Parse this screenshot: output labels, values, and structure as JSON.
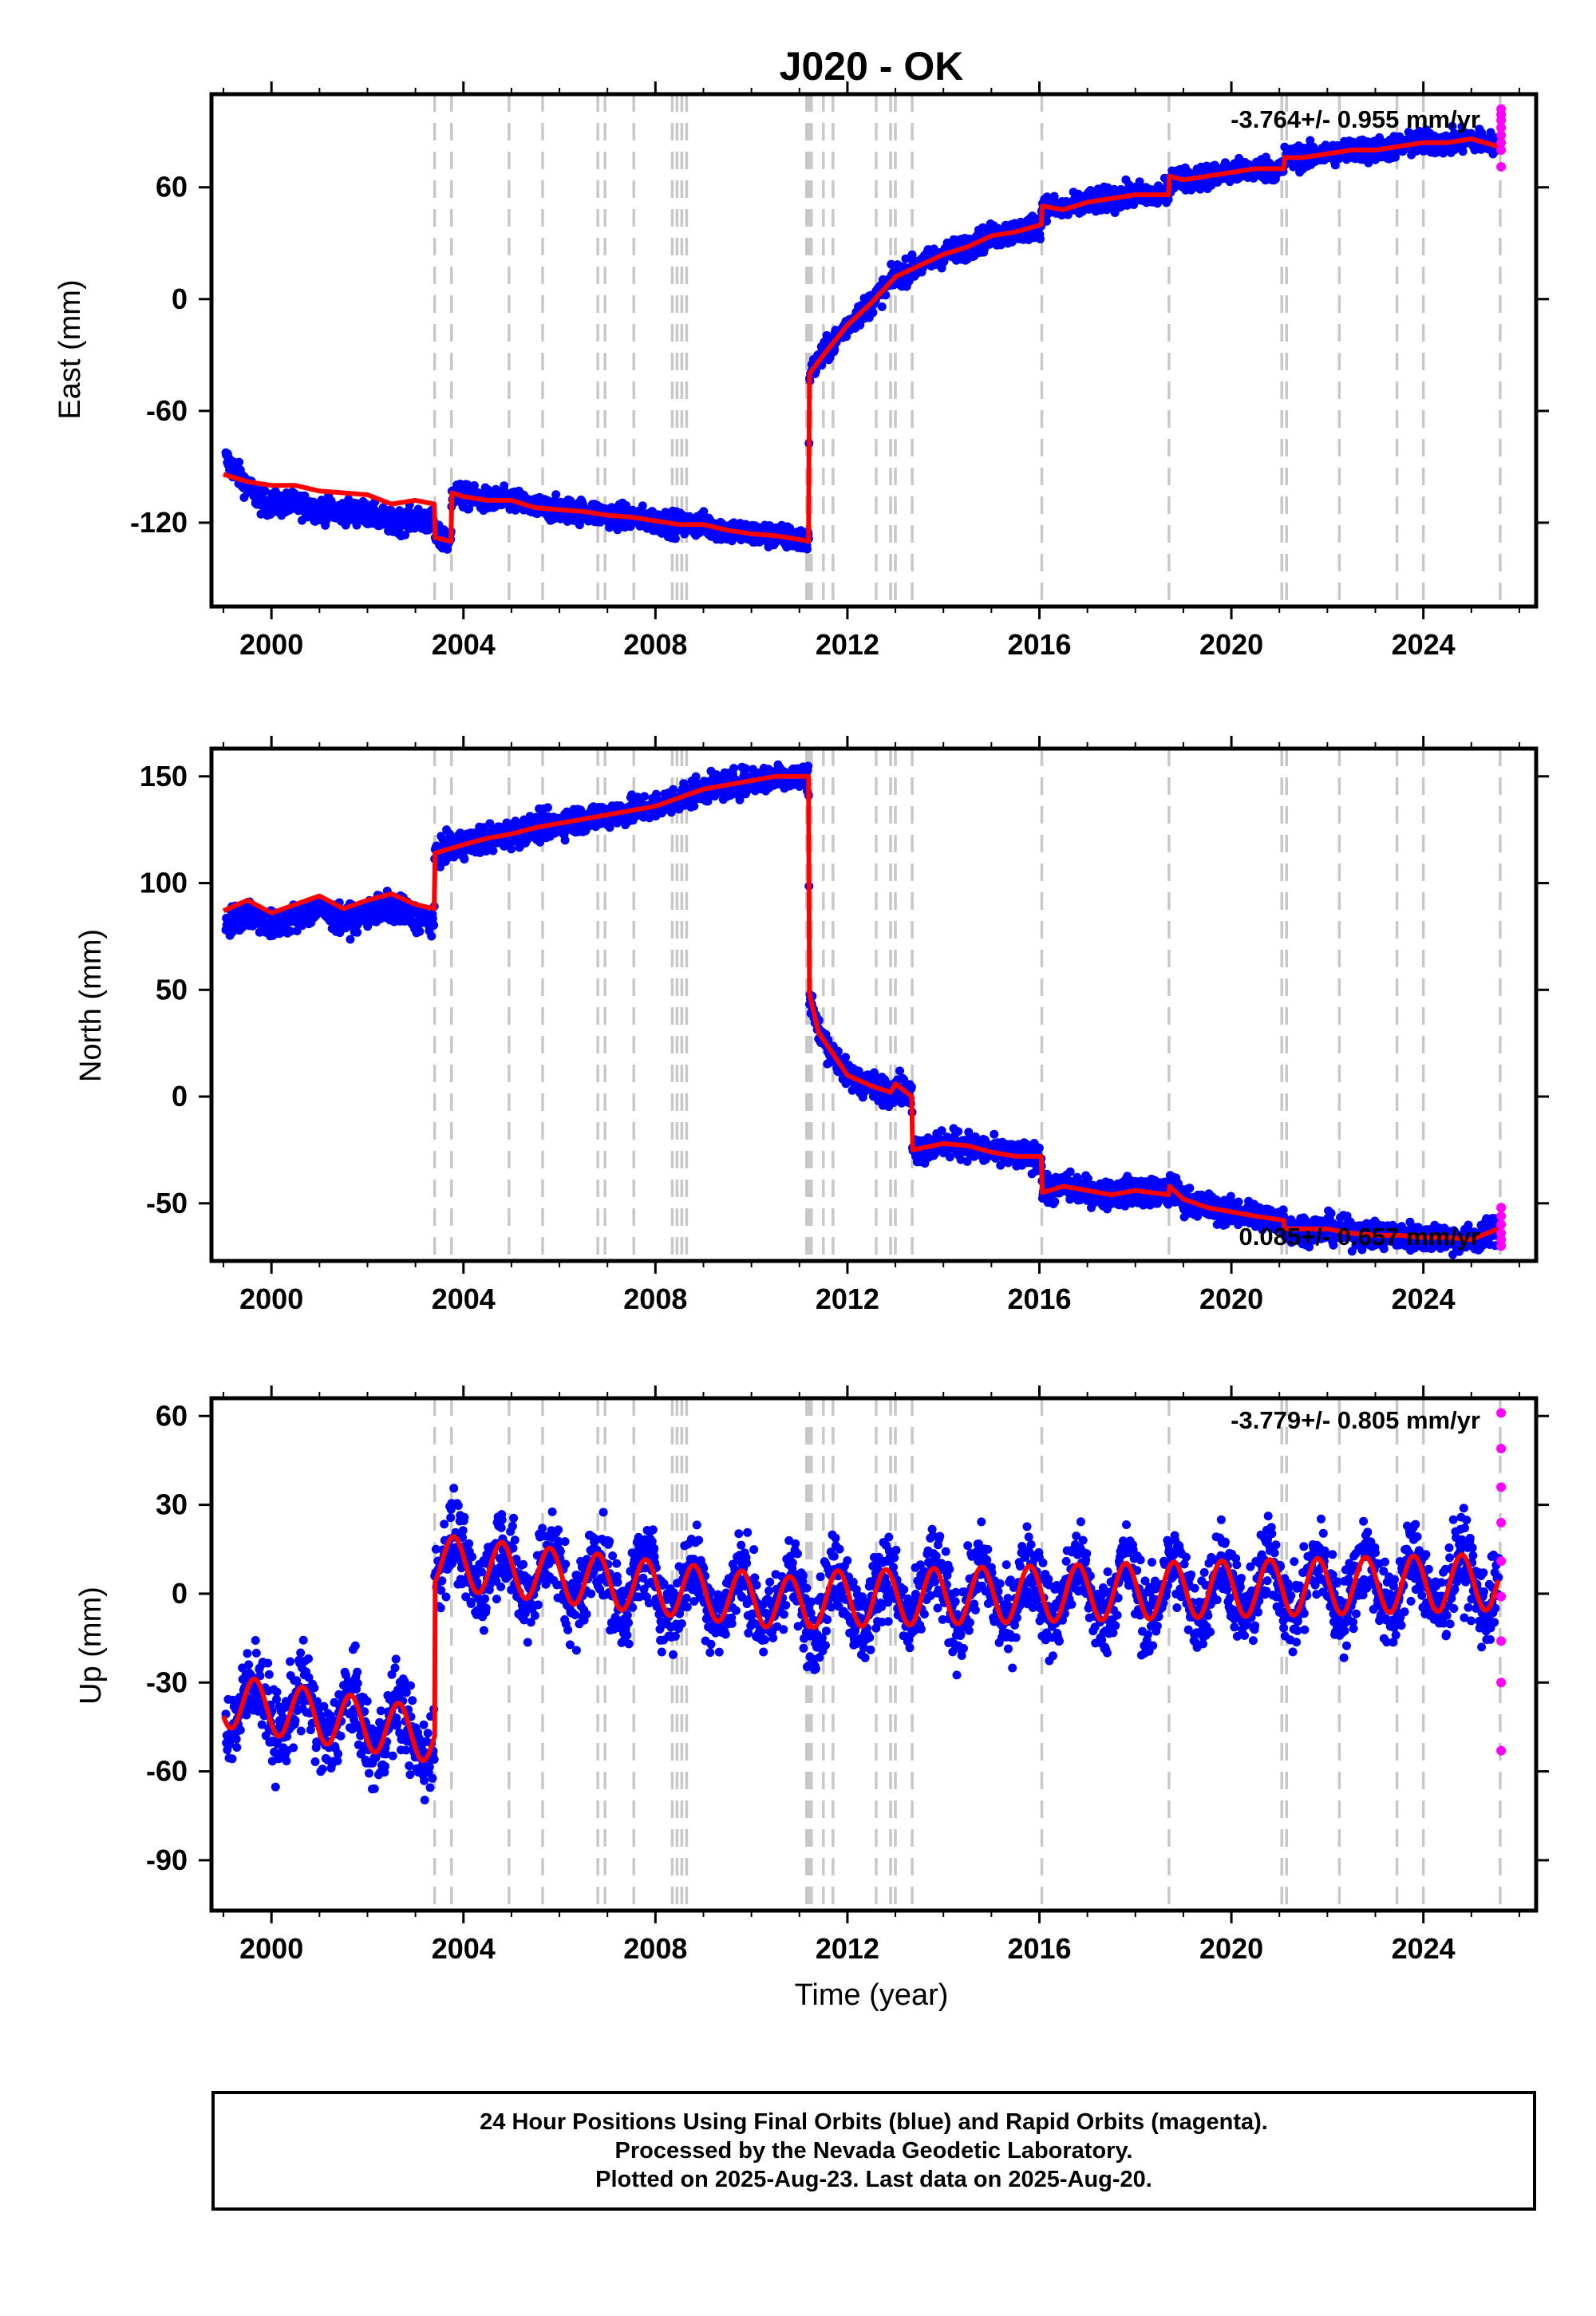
{
  "title": "J020 - OK",
  "xlabel": "Time (year)",
  "x_ticks": [
    "2000",
    "2004",
    "2008",
    "2012",
    "2016",
    "2020",
    "2024"
  ],
  "colors": {
    "final": "#0000ff",
    "rapid": "#ff00ff",
    "model": "#ff0000",
    "event_lines": "#c8c8c8"
  },
  "footer": {
    "line1": "24 Hour Positions Using Final Orbits (blue) and Rapid Orbits (magenta).",
    "line2": "Processed by the Nevada Geodetic Laboratory.",
    "line3": "Plotted on 2025-Aug-23. Last data on 2025-Aug-20."
  },
  "chart_data": [
    {
      "type": "scatter",
      "ylabel": "East (mm)",
      "rate_label": "-3.764+/- 0.955 mm/yr",
      "xlim": [
        1998.75,
        2026.35
      ],
      "ylim": [
        -165,
        110
      ],
      "y_ticks": [
        "60",
        "0",
        "-60",
        "-120"
      ],
      "y_tick_values": [
        60,
        0,
        -60,
        -120
      ],
      "event_lines": [
        2003.4,
        2003.75,
        2004.95,
        2005.65,
        2006.8,
        2006.95,
        2007.55,
        2008.35,
        2008.45,
        2008.55,
        2008.65,
        2011.15,
        2011.2,
        2011.25,
        2011.5,
        2011.7,
        2012.6,
        2012.9,
        2013.0,
        2013.35,
        2016.05,
        2018.7,
        2021.05,
        2021.15,
        2022.25,
        2023.45,
        2024.0,
        2025.6
      ],
      "trend_segments": [
        {
          "x": [
            1999.0,
            2003.4
          ],
          "y": [
            -80,
            -118
          ]
        },
        {
          "x": [
            2003.4,
            2003.75
          ],
          "y": [
            -128,
            -132
          ]
        },
        {
          "x": [
            2003.75,
            2011.2
          ],
          "y": [
            -102,
            -136
          ]
        },
        {
          "x": [
            2011.2,
            2012.5
          ],
          "y": [
            -38,
            0
          ]
        },
        {
          "x": [
            2012.5,
            2016.05
          ],
          "y": [
            8,
            40
          ]
        },
        {
          "x": [
            2016.05,
            2018.7
          ],
          "y": [
            46,
            55
          ]
        },
        {
          "x": [
            2018.7,
            2021.1
          ],
          "y": [
            63,
            68
          ]
        },
        {
          "x": [
            2021.1,
            2025.6
          ],
          "y": [
            72,
            86
          ]
        }
      ],
      "model": {
        "x": [
          1999.0,
          1999.5,
          2000.0,
          2000.5,
          2001.0,
          2001.5,
          2002.0,
          2002.5,
          2003.0,
          2003.39,
          2003.41,
          2003.74,
          2003.76,
          2004.0,
          2004.5,
          2005.0,
          2005.5,
          2006.0,
          2006.5,
          2007.0,
          2007.5,
          2008.0,
          2008.5,
          2009.0,
          2009.5,
          2010.0,
          2010.5,
          2011.0,
          2011.19,
          2011.21,
          2011.5,
          2012.0,
          2012.5,
          2013.0,
          2013.5,
          2014.0,
          2014.5,
          2015.0,
          2015.5,
          2016.04,
          2016.06,
          2016.5,
          2017.0,
          2017.5,
          2018.0,
          2018.69,
          2018.71,
          2019.0,
          2019.5,
          2020.0,
          2020.5,
          2021.09,
          2021.11,
          2021.5,
          2022.0,
          2022.5,
          2023.0,
          2023.5,
          2024.0,
          2024.5,
          2025.0,
          2025.55
        ],
        "y": [
          -94,
          -98,
          -100,
          -100,
          -103,
          -104,
          -105,
          -110,
          -108,
          -110,
          -128,
          -130,
          -104,
          -106,
          -108,
          -108,
          -112,
          -113,
          -114,
          -116,
          -117,
          -119,
          -121,
          -121,
          -124,
          -126,
          -127,
          -129,
          -130,
          -40,
          -30,
          -14,
          -2,
          12,
          18,
          24,
          28,
          34,
          36,
          40,
          50,
          48,
          52,
          54,
          56,
          56,
          66,
          64,
          66,
          68,
          70,
          70,
          76,
          76,
          78,
          80,
          80,
          82,
          84,
          84,
          86,
          82
        ]
      },
      "rapid_points": [
        [
          2025.62,
          102
        ],
        [
          2025.62,
          99
        ],
        [
          2025.62,
          96
        ],
        [
          2025.62,
          92
        ],
        [
          2025.62,
          88
        ],
        [
          2025.62,
          84
        ],
        [
          2025.62,
          80
        ],
        [
          2025.62,
          71
        ]
      ]
    },
    {
      "type": "scatter",
      "ylabel": "North (mm)",
      "rate_label": "0.085+/- 0.657 mm/yr",
      "xlim": [
        1998.75,
        2026.35
      ],
      "ylim": [
        -77,
        163
      ],
      "y_ticks": [
        "150",
        "100",
        "50",
        "0",
        "-50"
      ],
      "y_tick_values": [
        150,
        100,
        50,
        0,
        -50
      ],
      "event_lines": [
        2003.4,
        2003.75,
        2004.95,
        2005.65,
        2006.8,
        2006.95,
        2007.55,
        2008.35,
        2008.45,
        2008.55,
        2008.65,
        2011.15,
        2011.2,
        2011.25,
        2011.5,
        2011.7,
        2012.6,
        2012.9,
        2013.0,
        2013.35,
        2016.05,
        2018.7,
        2021.05,
        2021.15,
        2022.25,
        2023.45,
        2024.0,
        2025.6
      ],
      "trend_segments": [
        {
          "x": [
            1999.0,
            2003.4
          ],
          "y": [
            80,
            97
          ]
        },
        {
          "x": [
            2003.4,
            2011.2
          ],
          "y": [
            115,
            152
          ]
        },
        {
          "x": [
            2011.2,
            2012.5
          ],
          "y": [
            55,
            5
          ]
        },
        {
          "x": [
            2012.5,
            2016.05
          ],
          "y": [
            0,
            -32
          ]
        },
        {
          "x": [
            2016.05,
            2018.7
          ],
          "y": [
            -42,
            -48
          ]
        },
        {
          "x": [
            2018.7,
            2025.6
          ],
          "y": [
            -50,
            -68
          ]
        }
      ],
      "model": {
        "x": [
          1999.0,
          1999.5,
          2000.0,
          2000.5,
          2001.0,
          2001.5,
          2002.0,
          2002.5,
          2003.0,
          2003.39,
          2003.41,
          2004.0,
          2004.5,
          2005.0,
          2005.5,
          2006.0,
          2006.5,
          2007.0,
          2007.5,
          2008.0,
          2008.5,
          2009.0,
          2009.5,
          2010.0,
          2010.5,
          2011.19,
          2011.21,
          2011.4,
          2011.7,
          2012.0,
          2012.5,
          2012.9,
          2013.0,
          2013.34,
          2013.36,
          2014.0,
          2014.5,
          2015.0,
          2015.5,
          2016.04,
          2016.06,
          2016.5,
          2017.0,
          2017.5,
          2018.0,
          2018.69,
          2018.71,
          2019.0,
          2019.5,
          2020.0,
          2020.5,
          2021.09,
          2021.11,
          2022.0,
          2022.5,
          2023.0,
          2023.5,
          2024.0,
          2024.5,
          2025.0,
          2025.55
        ],
        "y": [
          87,
          92,
          86,
          90,
          94,
          88,
          92,
          95,
          90,
          88,
          114,
          118,
          121,
          123,
          126,
          128,
          130,
          132,
          134,
          136,
          140,
          144,
          146,
          148,
          150,
          150,
          48,
          30,
          20,
          10,
          5,
          2,
          6,
          0,
          -25,
          -22,
          -23,
          -26,
          -28,
          -28,
          -45,
          -42,
          -44,
          -46,
          -44,
          -46,
          -42,
          -48,
          -52,
          -54,
          -56,
          -58,
          -62,
          -62,
          -64,
          -65,
          -65,
          -66,
          -66,
          -67,
          -62
        ]
      },
      "rapid_points": [
        [
          2025.62,
          -52
        ],
        [
          2025.62,
          -56
        ],
        [
          2025.62,
          -60
        ],
        [
          2025.62,
          -64
        ],
        [
          2025.62,
          -67
        ],
        [
          2025.62,
          -70
        ]
      ]
    },
    {
      "type": "scatter",
      "ylabel": "Up (mm)",
      "rate_label": "-3.779+/- 0.805 mm/yr",
      "xlim": [
        1998.75,
        2026.35
      ],
      "ylim": [
        -107,
        66
      ],
      "y_ticks": [
        "60",
        "30",
        "0",
        "-30",
        "-60",
        "-90"
      ],
      "y_tick_values": [
        60,
        30,
        0,
        -30,
        -60,
        -90
      ],
      "event_lines": [
        2003.4,
        2003.75,
        2004.95,
        2005.65,
        2006.8,
        2006.95,
        2007.55,
        2008.35,
        2008.45,
        2008.55,
        2008.65,
        2011.15,
        2011.2,
        2011.25,
        2011.5,
        2011.7,
        2012.6,
        2012.9,
        2013.0,
        2013.35,
        2016.05,
        2018.7,
        2021.05,
        2021.15,
        2022.25,
        2023.45,
        2024.0,
        2025.6
      ],
      "up_model": {
        "segments": [
          {
            "x": [
              1999.0,
              2003.4
            ],
            "mean": [
              -36,
              -48
            ],
            "amp": 9,
            "phase": 0.4
          },
          {
            "x": [
              2003.4,
              2011.2
            ],
            "mean": [
              11,
              -4
            ],
            "amp": 9,
            "phase": 0.55
          },
          {
            "x": [
              2011.2,
              2025.6
            ],
            "mean": [
              -2,
              4
            ],
            "amp": 9.5,
            "phase": 0.55
          }
        ]
      },
      "rapid_points": [
        [
          2025.62,
          61
        ],
        [
          2025.62,
          49
        ],
        [
          2025.62,
          36
        ],
        [
          2025.62,
          24
        ],
        [
          2025.62,
          11
        ],
        [
          2025.62,
          -1
        ],
        [
          2025.62,
          -16
        ],
        [
          2025.62,
          -30
        ],
        [
          2025.62,
          -53
        ]
      ]
    }
  ]
}
